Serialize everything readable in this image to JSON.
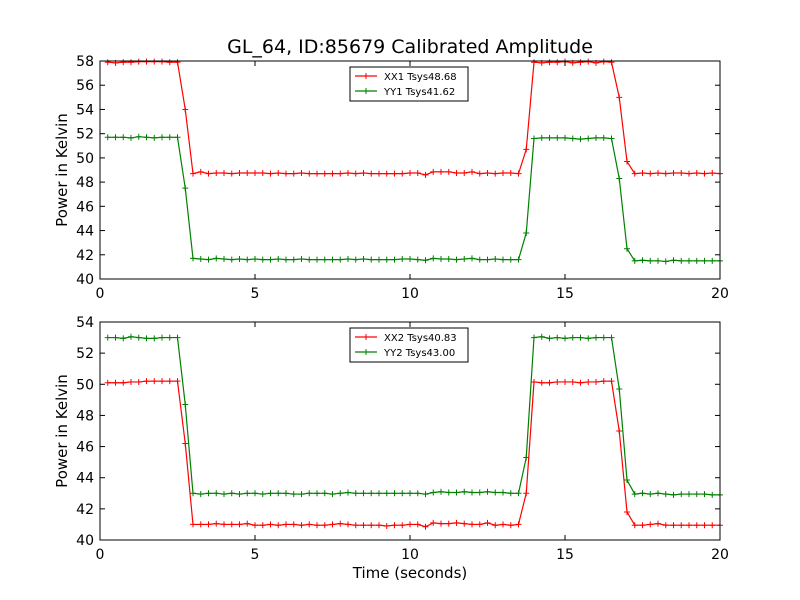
{
  "figure": {
    "title": "GL_64, ID:85679 Calibrated Amplitude",
    "xlabel": "Time (seconds)"
  },
  "chart_data": [
    {
      "type": "line",
      "ylabel": "Power in Kelvin",
      "xlim": [
        0,
        20
      ],
      "ylim": [
        40,
        58
      ],
      "xticks": [
        0,
        5,
        10,
        15,
        20
      ],
      "yticks": [
        40,
        42,
        44,
        46,
        48,
        50,
        52,
        54,
        56,
        58
      ],
      "grid": false,
      "legend_position": "top-center",
      "x": [
        0.25,
        0.5,
        0.75,
        1.0,
        1.25,
        1.5,
        1.75,
        2.0,
        2.25,
        2.5,
        2.75,
        3.0,
        3.25,
        3.5,
        3.75,
        4.0,
        4.25,
        4.5,
        4.75,
        5.0,
        5.25,
        5.5,
        5.75,
        6.0,
        6.25,
        6.5,
        6.75,
        7.0,
        7.25,
        7.5,
        7.75,
        8.0,
        8.25,
        8.5,
        8.75,
        9.0,
        9.25,
        9.5,
        9.75,
        10.0,
        10.25,
        10.5,
        10.75,
        11.0,
        11.25,
        11.5,
        11.75,
        12.0,
        12.25,
        12.5,
        12.75,
        13.0,
        13.25,
        13.5,
        13.75,
        14.0,
        14.25,
        14.5,
        14.75,
        15.0,
        15.25,
        15.5,
        15.75,
        16.0,
        16.25,
        16.5,
        16.75,
        17.0,
        17.25,
        17.5,
        17.75,
        18.0,
        18.25,
        18.5,
        18.75,
        19.0,
        19.25,
        19.5,
        19.75,
        20.0
      ],
      "series": [
        {
          "name": "XX1 Tsys48.68",
          "color": "#ff0000",
          "values": [
            57.9,
            57.85,
            57.9,
            57.9,
            57.95,
            57.95,
            57.95,
            57.95,
            57.9,
            57.9,
            54.0,
            48.7,
            48.85,
            48.7,
            48.75,
            48.75,
            48.7,
            48.75,
            48.75,
            48.75,
            48.75,
            48.7,
            48.75,
            48.7,
            48.7,
            48.75,
            48.7,
            48.7,
            48.7,
            48.7,
            48.7,
            48.75,
            48.7,
            48.75,
            48.7,
            48.7,
            48.7,
            48.7,
            48.7,
            48.75,
            48.75,
            48.6,
            48.85,
            48.85,
            48.85,
            48.75,
            48.75,
            48.85,
            48.7,
            48.75,
            48.7,
            48.75,
            48.75,
            48.7,
            50.7,
            57.9,
            57.85,
            57.9,
            57.9,
            57.95,
            57.85,
            57.9,
            57.95,
            57.85,
            57.95,
            57.9,
            55.0,
            49.7,
            48.7,
            48.75,
            48.7,
            48.75,
            48.7,
            48.75,
            48.75,
            48.7,
            48.75,
            48.7,
            48.75,
            48.7
          ]
        },
        {
          "name": "YY1 Tsys41.62",
          "color": "#008000",
          "values": [
            51.7,
            51.7,
            51.7,
            51.65,
            51.75,
            51.7,
            51.65,
            51.7,
            51.7,
            51.7,
            47.5,
            41.7,
            41.65,
            41.6,
            41.7,
            41.65,
            41.6,
            41.65,
            41.6,
            41.65,
            41.6,
            41.6,
            41.65,
            41.6,
            41.6,
            41.65,
            41.6,
            41.6,
            41.6,
            41.6,
            41.6,
            41.65,
            41.6,
            41.65,
            41.6,
            41.6,
            41.6,
            41.6,
            41.65,
            41.65,
            41.6,
            41.55,
            41.7,
            41.65,
            41.65,
            41.6,
            41.65,
            41.7,
            41.6,
            41.6,
            41.65,
            41.6,
            41.6,
            41.6,
            43.8,
            51.6,
            51.65,
            51.65,
            51.65,
            51.65,
            51.6,
            51.55,
            51.6,
            51.65,
            51.65,
            51.6,
            48.3,
            42.5,
            41.5,
            41.55,
            41.5,
            41.5,
            41.45,
            41.55,
            41.5,
            41.5,
            41.5,
            41.5,
            41.5,
            41.5
          ]
        }
      ]
    },
    {
      "type": "line",
      "ylabel": "Power in Kelvin",
      "xlim": [
        0,
        20
      ],
      "ylim": [
        40,
        54
      ],
      "xticks": [
        0,
        5,
        10,
        15,
        20
      ],
      "yticks": [
        40,
        42,
        44,
        46,
        48,
        50,
        52,
        54
      ],
      "grid": false,
      "legend_position": "top-center",
      "x": [
        0.25,
        0.5,
        0.75,
        1.0,
        1.25,
        1.5,
        1.75,
        2.0,
        2.25,
        2.5,
        2.75,
        3.0,
        3.25,
        3.5,
        3.75,
        4.0,
        4.25,
        4.5,
        4.75,
        5.0,
        5.25,
        5.5,
        5.75,
        6.0,
        6.25,
        6.5,
        6.75,
        7.0,
        7.25,
        7.5,
        7.75,
        8.0,
        8.25,
        8.5,
        8.75,
        9.0,
        9.25,
        9.5,
        9.75,
        10.0,
        10.25,
        10.5,
        10.75,
        11.0,
        11.25,
        11.5,
        11.75,
        12.0,
        12.25,
        12.5,
        12.75,
        13.0,
        13.25,
        13.5,
        13.75,
        14.0,
        14.25,
        14.5,
        14.75,
        15.0,
        15.25,
        15.5,
        15.75,
        16.0,
        16.25,
        16.5,
        16.75,
        17.0,
        17.25,
        17.5,
        17.75,
        18.0,
        18.25,
        18.5,
        18.75,
        19.0,
        19.25,
        19.5,
        19.75,
        20.0
      ],
      "series": [
        {
          "name": "XX2 Tsys40.83",
          "color": "#ff0000",
          "values": [
            50.1,
            50.1,
            50.1,
            50.15,
            50.15,
            50.2,
            50.2,
            50.2,
            50.2,
            50.2,
            46.2,
            41.0,
            41.0,
            41.0,
            41.05,
            41.0,
            41.0,
            41.0,
            41.05,
            40.95,
            40.95,
            41.0,
            40.95,
            41.0,
            41.0,
            40.95,
            41.0,
            40.95,
            40.95,
            41.0,
            41.05,
            41.0,
            40.95,
            40.95,
            40.95,
            40.95,
            40.9,
            40.95,
            40.95,
            41.0,
            41.0,
            40.85,
            41.1,
            41.05,
            41.05,
            41.1,
            41.05,
            41.0,
            41.0,
            41.1,
            40.95,
            41.0,
            40.95,
            41.0,
            43.0,
            50.15,
            50.1,
            50.1,
            50.15,
            50.15,
            50.15,
            50.1,
            50.15,
            50.15,
            50.2,
            50.2,
            47.0,
            41.8,
            40.95,
            40.95,
            41.0,
            41.05,
            40.95,
            40.95,
            40.95,
            40.95,
            40.95,
            40.95,
            40.95,
            40.95
          ]
        },
        {
          "name": "YY2 Tsys43.00",
          "color": "#008000",
          "values": [
            53.0,
            53.0,
            52.95,
            53.05,
            53.0,
            52.95,
            52.95,
            53.0,
            53.0,
            53.0,
            48.7,
            43.0,
            42.95,
            43.0,
            43.0,
            42.95,
            43.0,
            42.95,
            43.0,
            43.0,
            42.95,
            43.0,
            43.0,
            43.0,
            42.95,
            42.95,
            43.0,
            43.0,
            43.0,
            42.95,
            43.0,
            43.05,
            43.0,
            43.0,
            43.0,
            43.0,
            43.0,
            43.0,
            43.0,
            43.0,
            43.0,
            42.95,
            43.05,
            43.1,
            43.05,
            43.05,
            43.1,
            43.05,
            43.05,
            43.1,
            43.05,
            43.05,
            43.0,
            43.0,
            45.3,
            53.0,
            53.05,
            52.95,
            53.0,
            52.95,
            53.0,
            53.0,
            52.95,
            53.0,
            53.0,
            53.0,
            49.7,
            43.85,
            42.95,
            43.0,
            42.95,
            43.0,
            42.95,
            42.9,
            42.95,
            42.95,
            42.95,
            42.95,
            42.9,
            42.9
          ]
        }
      ]
    }
  ]
}
